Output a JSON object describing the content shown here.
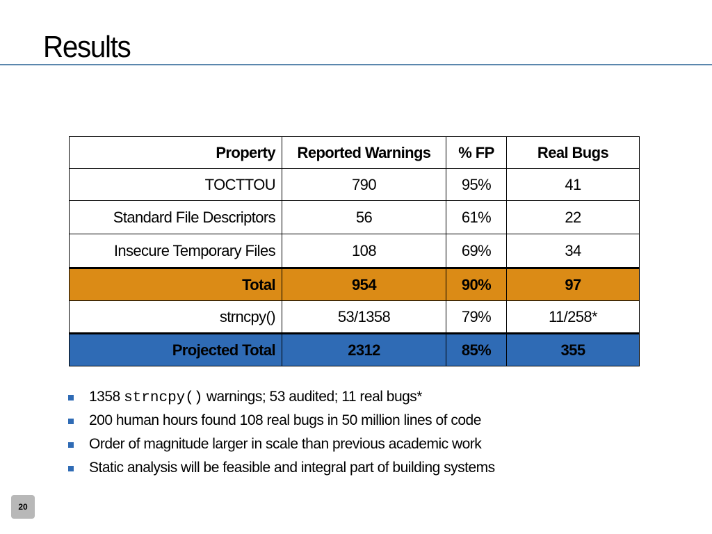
{
  "slide": {
    "title": "Results",
    "page_number": "20"
  },
  "table": {
    "headers": [
      "Property",
      "Reported Warnings",
      "% FP",
      "Real Bugs"
    ],
    "rows": [
      {
        "property": "TOCTTOU",
        "reported": "790",
        "fp": "95%",
        "bugs": "41"
      },
      {
        "property": "Standard File Descriptors",
        "reported": "56",
        "fp": "61%",
        "bugs": "22"
      },
      {
        "property": "Insecure Temporary Files",
        "reported": "108",
        "fp": "69%",
        "bugs": "34"
      },
      {
        "property": "Total",
        "reported": "954",
        "fp": "90%",
        "bugs": "97"
      },
      {
        "property": "strncpy()",
        "reported": "53/1358",
        "fp": "79%",
        "bugs": "11/258*"
      },
      {
        "property": "Projected Total",
        "reported": "2312",
        "fp": "85%",
        "bugs": "355"
      }
    ],
    "highlight_colors": {
      "total": "#db8b16",
      "projected_total": "#2f6bb5"
    }
  },
  "bullets": [
    {
      "prefix": "1358 ",
      "code": "strncpy()",
      "suffix": " warnings; 53 audited; 11 real bugs*"
    },
    {
      "text": "200 human hours found 108 real bugs in 50 million lines of code"
    },
    {
      "text": "Order of magnitude larger in scale than previous academic work"
    },
    {
      "text": "Static analysis will be feasible and integral part of building systems"
    }
  ],
  "colors": {
    "title_rule": "#5b87ad",
    "bullet_marker": "#2f6bb5",
    "page_number_bg": "#b8b8b8"
  }
}
